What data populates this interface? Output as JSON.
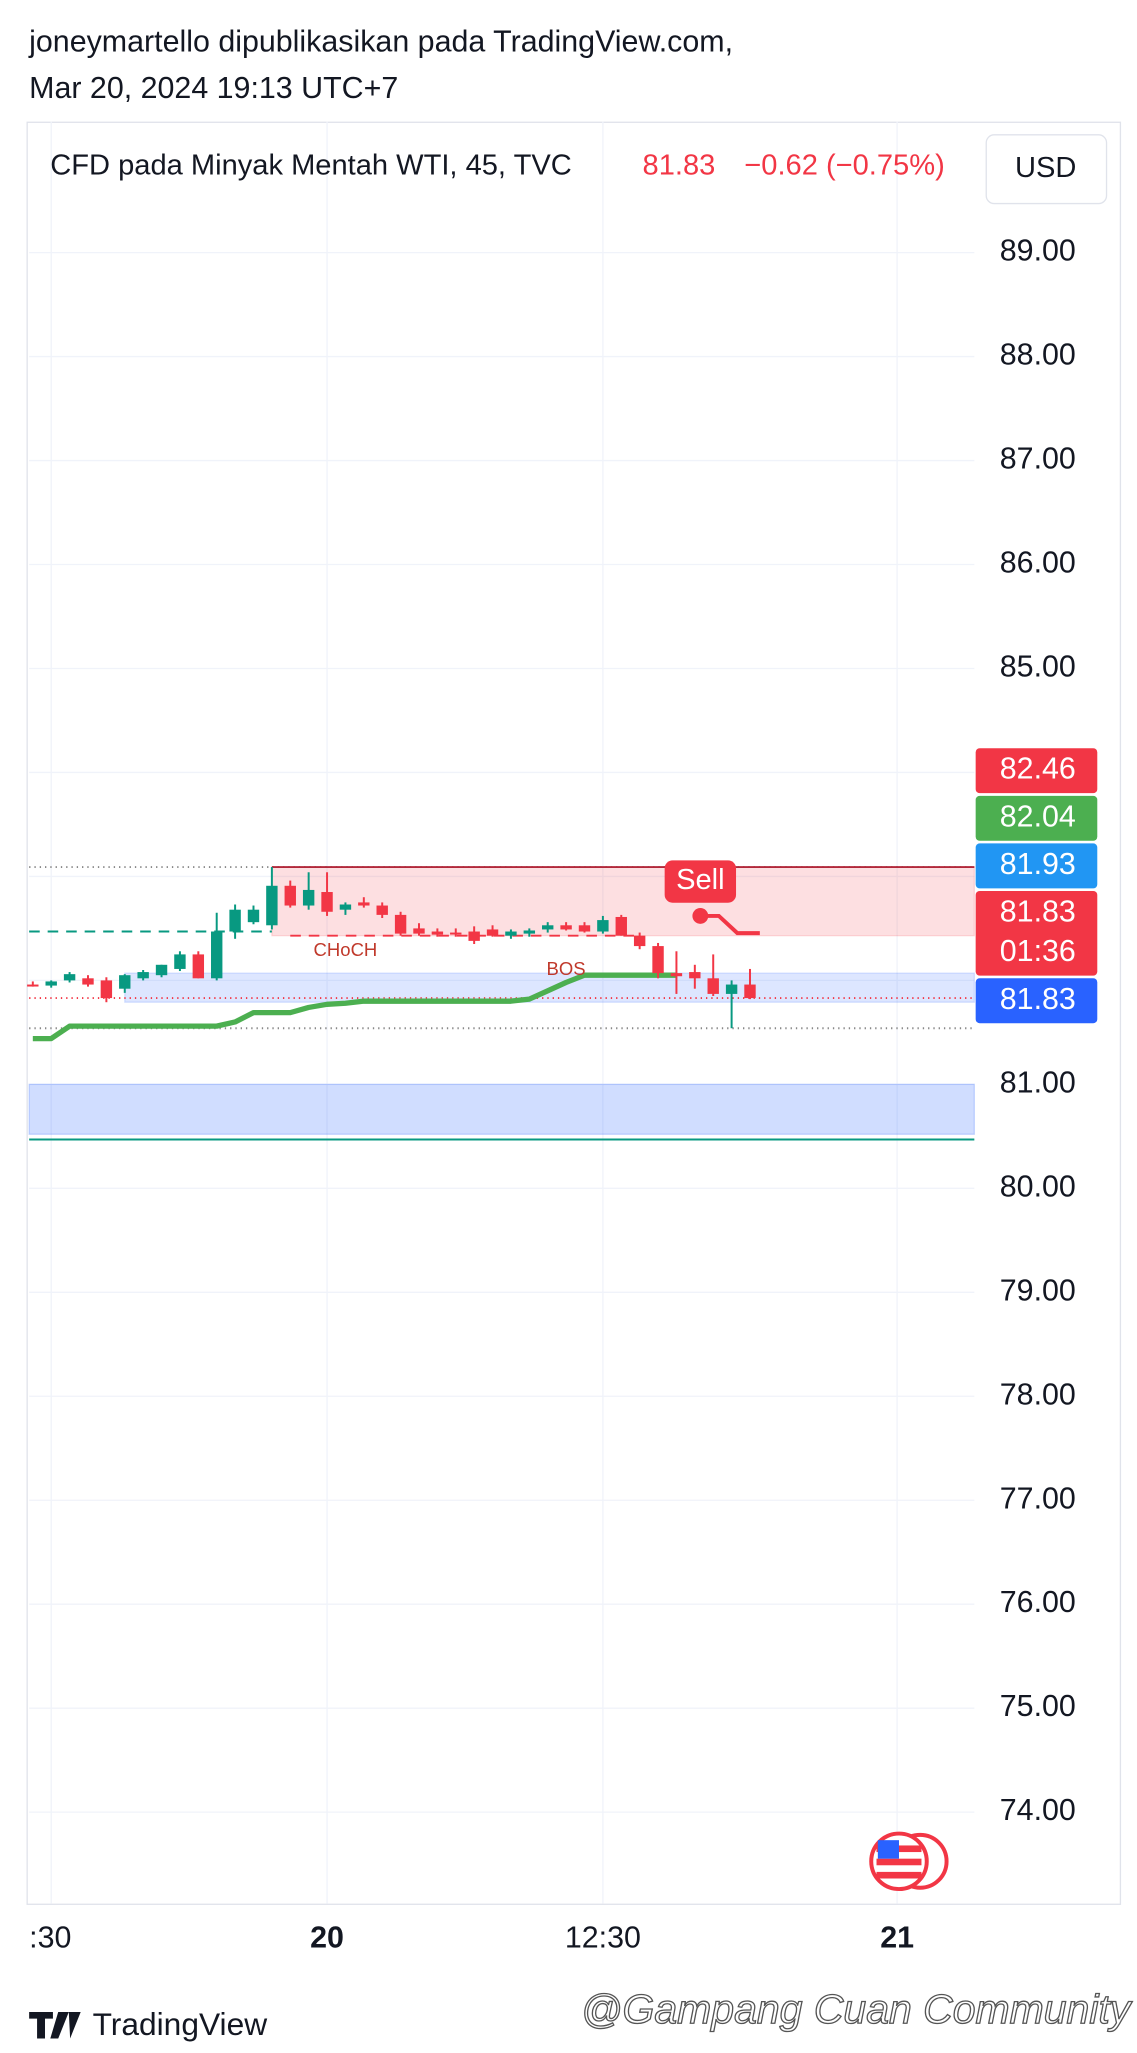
{
  "header": {
    "author": "joneymartello dipublikasikan pada TradingView.com,",
    "date": "Mar 20, 2024 19:13 UTC+7"
  },
  "footer": {
    "brand": "TradingView",
    "watermark": "@Gampang Cuan Community"
  },
  "chart_data": {
    "type": "candlestick",
    "title": "CFD pada Minyak Mentah WTI, 45, TVC",
    "last_price": 81.83,
    "change": "−0.62 (−0.75%)",
    "currency": "USD",
    "up_color": "#089981",
    "down_color": "#f23645",
    "x": [
      0,
      1,
      2,
      3,
      4,
      5,
      6,
      7,
      8,
      9,
      10,
      11,
      12,
      13,
      14,
      15,
      16,
      17,
      18,
      19,
      20,
      21,
      22,
      23,
      24,
      25,
      26,
      27,
      28,
      29,
      30,
      31,
      32,
      33,
      34,
      35,
      36,
      37,
      38,
      39
    ],
    "open": [
      81.96,
      81.95,
      82.0,
      82.02,
      82.0,
      81.92,
      82.02,
      82.05,
      82.11,
      82.25,
      82.02,
      82.47,
      82.56,
      82.53,
      82.91,
      82.72,
      82.85,
      82.68,
      82.75,
      82.72,
      82.63,
      82.5,
      82.47,
      82.46,
      82.47,
      82.49,
      82.43,
      82.45,
      82.49,
      82.53,
      82.53,
      82.47,
      82.61,
      82.43,
      82.33,
      82.07,
      82.08,
      82.02,
      81.87,
      81.96
    ],
    "high": [
      81.99,
      82.0,
      82.08,
      82.05,
      82.03,
      82.06,
      82.1,
      82.15,
      82.28,
      82.28,
      82.65,
      82.73,
      82.72,
      83.09,
      82.96,
      83.04,
      83.04,
      82.75,
      82.8,
      82.75,
      82.66,
      82.55,
      82.5,
      82.5,
      82.52,
      82.53,
      82.49,
      82.5,
      82.56,
      82.56,
      82.56,
      82.62,
      82.63,
      82.46,
      82.36,
      82.28,
      82.15,
      82.25,
      82.0,
      82.11
    ],
    "low": [
      81.94,
      81.93,
      81.98,
      81.94,
      81.79,
      81.88,
      82.0,
      82.03,
      82.09,
      82.02,
      82.0,
      82.4,
      82.54,
      82.49,
      82.7,
      82.68,
      82.62,
      82.63,
      82.7,
      82.6,
      82.43,
      82.43,
      82.42,
      82.42,
      82.35,
      82.42,
      82.4,
      82.42,
      82.46,
      82.48,
      82.46,
      82.45,
      82.43,
      82.3,
      82.02,
      81.87,
      81.92,
      81.85,
      81.54,
      81.82
    ],
    "close": [
      81.95,
      81.99,
      82.06,
      81.96,
      81.83,
      82.05,
      82.08,
      82.15,
      82.25,
      82.02,
      82.47,
      82.68,
      82.68,
      82.91,
      82.72,
      82.87,
      82.66,
      82.73,
      82.72,
      82.63,
      82.45,
      82.45,
      82.44,
      82.45,
      82.38,
      82.43,
      82.47,
      82.48,
      82.53,
      82.49,
      82.47,
      82.58,
      82.43,
      82.33,
      82.07,
      82.04,
      82.02,
      81.87,
      81.96,
      81.83
    ],
    "trend_line": {
      "color": "#4caf50",
      "values": [
        81.44,
        81.44,
        81.56,
        81.56,
        81.56,
        81.56,
        81.56,
        81.56,
        81.56,
        81.56,
        81.56,
        81.6,
        81.69,
        81.69,
        81.69,
        81.74,
        81.77,
        81.78,
        81.8,
        81.8,
        81.8,
        81.8,
        81.8,
        81.8,
        81.8,
        81.8,
        81.8,
        81.82,
        81.9,
        81.98,
        82.05,
        82.05,
        82.05,
        82.05,
        82.05,
        82.05
      ]
    },
    "zones": [
      {
        "from": 82.43,
        "to": 83.09,
        "start": 13,
        "color": "rgba(242,54,69,0.16)"
      },
      {
        "from": 81.79,
        "to": 82.07,
        "start": 5,
        "color": "rgba(41,98,255,0.16)"
      },
      {
        "from": 80.52,
        "to": 81.0,
        "color": "rgba(41,98,255,0.22)"
      }
    ],
    "levels": [
      {
        "value": 83.09,
        "color": "#888888",
        "dash": "1 3"
      },
      {
        "value": 81.54,
        "color": "#888888",
        "dash": "1 3"
      },
      {
        "value": 81.83,
        "color": "#f23645",
        "dash": "1 3"
      },
      {
        "value": 83.09,
        "start": 13,
        "color": "#b2283a"
      },
      {
        "value": 82.47,
        "end": 13,
        "color": "#089981",
        "dash": "8 6"
      },
      {
        "value": 82.43,
        "start": 14,
        "end": 33,
        "color": "#f23645",
        "dash": "8 6"
      },
      {
        "value": 80.47,
        "color": "#089981"
      }
    ],
    "annotations": [
      {
        "text": "CHoCH",
        "x": 17,
        "value": 82.28,
        "color": "#c0392b"
      },
      {
        "text": "BOS",
        "x": 29,
        "value": 82.1,
        "color": "#c0392b"
      }
    ],
    "signal": {
      "text": "Sell",
      "x": 36.3,
      "value": 82.62,
      "color": "#f23645"
    },
    "price_labels": [
      {
        "value": 82.46,
        "color": "#f23645"
      },
      {
        "value": 82.04,
        "color": "#4caf50"
      },
      {
        "value": 81.93,
        "color": "#2196f3"
      },
      {
        "value": 81.83,
        "color": "#f23645",
        "countdown": "01:36"
      },
      {
        "value": 81.83,
        "color": "#2962ff"
      }
    ],
    "xlim": [
      -0.2,
      51.2
    ],
    "xticks": [
      {
        "value": 1,
        "label": ":30"
      },
      {
        "value": 16,
        "label": "20"
      },
      {
        "value": 31,
        "label": "12:30"
      },
      {
        "value": 47,
        "label": "21"
      }
    ],
    "ylim": [
      73.12,
      90.26
    ],
    "yticks": [
      {
        "value": 89,
        "label": "89.00"
      },
      {
        "value": 88,
        "label": "88.00"
      },
      {
        "value": 87,
        "label": "87.00"
      },
      {
        "value": 86,
        "label": "86.00"
      },
      {
        "value": 85,
        "label": "85.00"
      },
      {
        "value": 81,
        "label": "81.00"
      },
      {
        "value": 80,
        "label": "80.00"
      },
      {
        "value": 79,
        "label": "79.00"
      },
      {
        "value": 78,
        "label": "78.00"
      },
      {
        "value": 77,
        "label": "77.00"
      },
      {
        "value": 76,
        "label": "76.00"
      },
      {
        "value": 75,
        "label": "75.00"
      },
      {
        "value": 74,
        "label": "74.00"
      }
    ],
    "extra_grid": [
      84,
      83,
      82
    ],
    "grid": true
  }
}
